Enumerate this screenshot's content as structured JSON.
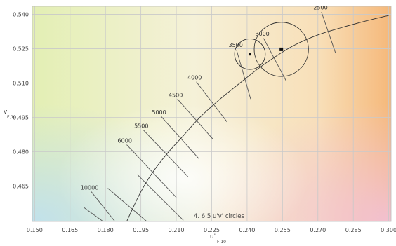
{
  "chart_data": {
    "type": "scatter",
    "title": "",
    "xlabel": "u'",
    "xlabel_sub": "F,10",
    "ylabel": "v'",
    "ylabel_sub": "F,10",
    "xlim": [
      0.149,
      0.301
    ],
    "ylim": [
      0.4495,
      0.5435
    ],
    "x_ticks": [
      "0.150",
      "0.165",
      "0.180",
      "0.195",
      "0.210",
      "0.225",
      "0.240",
      "0.255",
      "0.270",
      "0.285",
      "0.300"
    ],
    "y_ticks": [
      "0.465",
      "0.480",
      "0.495",
      "0.510",
      "0.525",
      "0.540"
    ],
    "grid": true,
    "background": "CIE 1976 u'v' chromaticity color background",
    "note": "4. 6.5 u'v' circles",
    "planckian_locus": {
      "points": [
        [
          0.3,
          0.5395
        ],
        [
          0.29,
          0.537
        ],
        [
          0.28,
          0.5342
        ],
        [
          0.27,
          0.531
        ],
        [
          0.26,
          0.5265
        ],
        [
          0.252,
          0.5215
        ],
        [
          0.245,
          0.5165
        ],
        [
          0.237,
          0.51
        ],
        [
          0.228,
          0.5025
        ],
        [
          0.22,
          0.495
        ],
        [
          0.213,
          0.487
        ],
        [
          0.206,
          0.479
        ],
        [
          0.2,
          0.471
        ],
        [
          0.195,
          0.4625
        ],
        [
          0.191,
          0.454
        ],
        [
          0.189,
          0.4495
        ]
      ]
    },
    "isotherms": [
      {
        "label": "2500",
        "x1": 0.2715,
        "y1": 0.541,
        "x2": 0.2775,
        "y2": 0.523
      },
      {
        "label": "3000",
        "x1": 0.247,
        "y1": 0.5295,
        "x2": 0.2565,
        "y2": 0.511
      },
      {
        "label": "3500",
        "x1": 0.2355,
        "y1": 0.5245,
        "x2": 0.2415,
        "y2": 0.503
      },
      {
        "label": "4000",
        "x1": 0.2185,
        "y1": 0.5105,
        "x2": 0.2315,
        "y2": 0.493
      },
      {
        "label": "4500",
        "x1": 0.2105,
        "y1": 0.503,
        "x2": 0.2255,
        "y2": 0.4855
      },
      {
        "label": "5000",
        "x1": 0.2035,
        "y1": 0.4955,
        "x2": 0.2195,
        "y2": 0.477
      },
      {
        "label": "5500",
        "x1": 0.196,
        "y1": 0.4895,
        "x2": 0.215,
        "y2": 0.469
      },
      {
        "label": "6000",
        "x1": 0.189,
        "y1": 0.483,
        "x2": 0.21,
        "y2": 0.46
      },
      {
        "label": "10000",
        "x1": 0.174,
        "y1": 0.4625,
        "x2": 0.184,
        "y2": 0.4495
      },
      {
        "label": "",
        "x1": 0.181,
        "y1": 0.464,
        "x2": 0.1975,
        "y2": 0.4495
      },
      {
        "label": "",
        "x1": 0.1935,
        "y1": 0.47,
        "x2": 0.213,
        "y2": 0.45
      },
      {
        "label": "",
        "x1": 0.171,
        "y1": 0.4555,
        "x2": 0.179,
        "y2": 0.4495
      }
    ],
    "points": [
      {
        "x": 0.2412,
        "y": 0.5226,
        "marker": "circle",
        "circle_radius_uv": 0.0065
      },
      {
        "x": 0.2545,
        "y": 0.5247,
        "marker": "square",
        "circle_radius_uv": 0.0115
      }
    ],
    "colors": {
      "gridline": "#c9c9c9",
      "locus": "#333333",
      "isotherm": "#555555",
      "tick_label": "#444444"
    }
  }
}
